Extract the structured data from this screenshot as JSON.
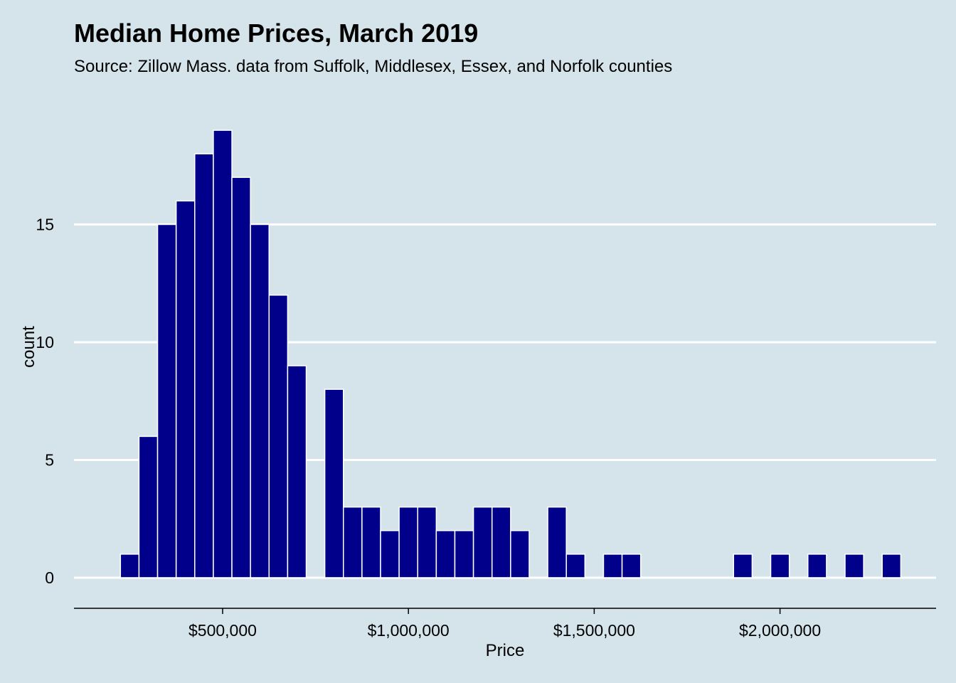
{
  "chart_data": {
    "type": "bar",
    "title": "Median Home Prices, March 2019",
    "subtitle": "Source: Zillow Mass. data from Suffolk, Middlesex, Essex, and Norfolk counties",
    "xlabel": "Price",
    "ylabel": "count",
    "bin_width": 50000,
    "bin_start": 225000,
    "counts": [
      1,
      6,
      15,
      16,
      18,
      19,
      17,
      15,
      12,
      9,
      0,
      8,
      3,
      3,
      2,
      3,
      3,
      2,
      2,
      3,
      3,
      2,
      0,
      3,
      1,
      0,
      1,
      1,
      0,
      0,
      0,
      0,
      0,
      1,
      0,
      1,
      0,
      1,
      0,
      1,
      0,
      1
    ],
    "xlim": [
      100000,
      2420000
    ],
    "ylim": [
      -1.3,
      20
    ],
    "x_ticks": [
      500000,
      1000000,
      1500000,
      2000000
    ],
    "x_tick_labels": [
      "$500,000",
      "$1,000,000",
      "$1,500,000",
      "$2,000,000"
    ],
    "y_ticks": [
      0,
      5,
      10,
      15
    ],
    "y_tick_labels": [
      "0",
      "5",
      "10",
      "15"
    ],
    "grid": "horizontal-major",
    "bar_color": "#00008b",
    "bar_outline": "#ffffff",
    "background": "#d5e4eb",
    "gridline_color": "#ffffff"
  }
}
